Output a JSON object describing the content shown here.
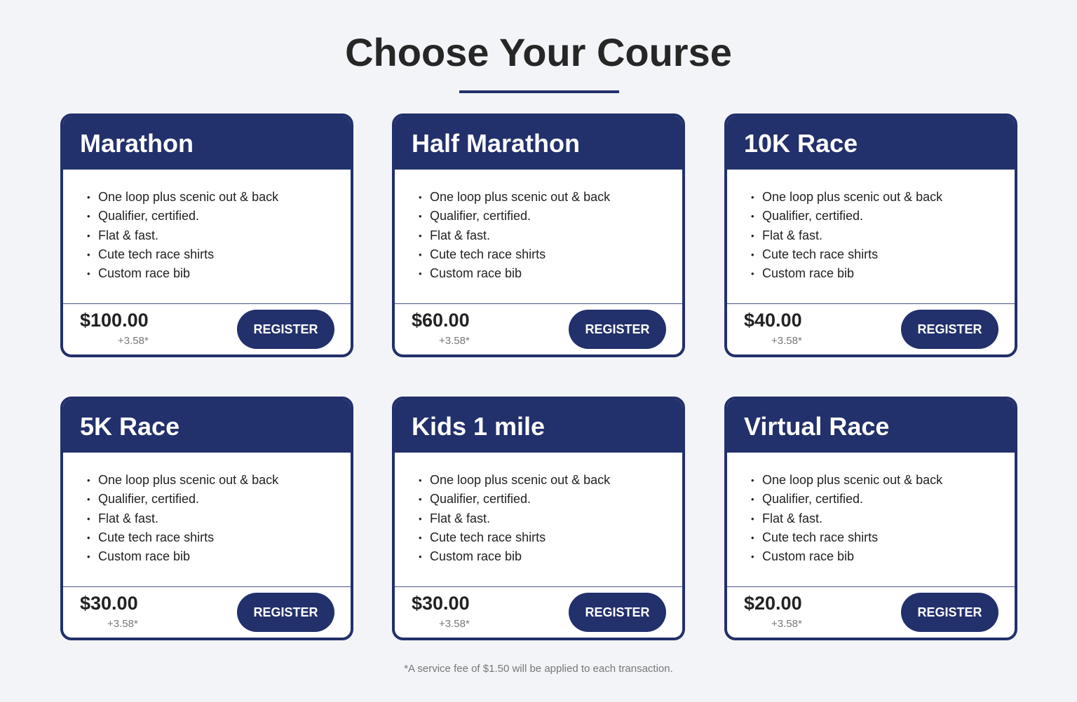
{
  "title": "Choose Your Course",
  "features": [
    "One loop plus scenic out & back",
    "Qualifier, certified.",
    "Flat & fast.",
    "Cute tech race shirts",
    "Custom race bib"
  ],
  "register_label": "REGISTER",
  "fee": "+3.58*",
  "courses": [
    {
      "name": "Marathon",
      "price": "$100.00"
    },
    {
      "name": "Half Marathon",
      "price": "$60.00"
    },
    {
      "name": "10K Race",
      "price": "$40.00"
    },
    {
      "name": "5K Race",
      "price": "$30.00"
    },
    {
      "name": "Kids 1 mile",
      "price": "$30.00"
    },
    {
      "name": "Virtual Race",
      "price": "$20.00"
    }
  ],
  "footnote": "*A service fee of $1.50 will be applied to each transaction.",
  "colors": {
    "accent": "#22306b",
    "background": "#f3f4f8"
  }
}
